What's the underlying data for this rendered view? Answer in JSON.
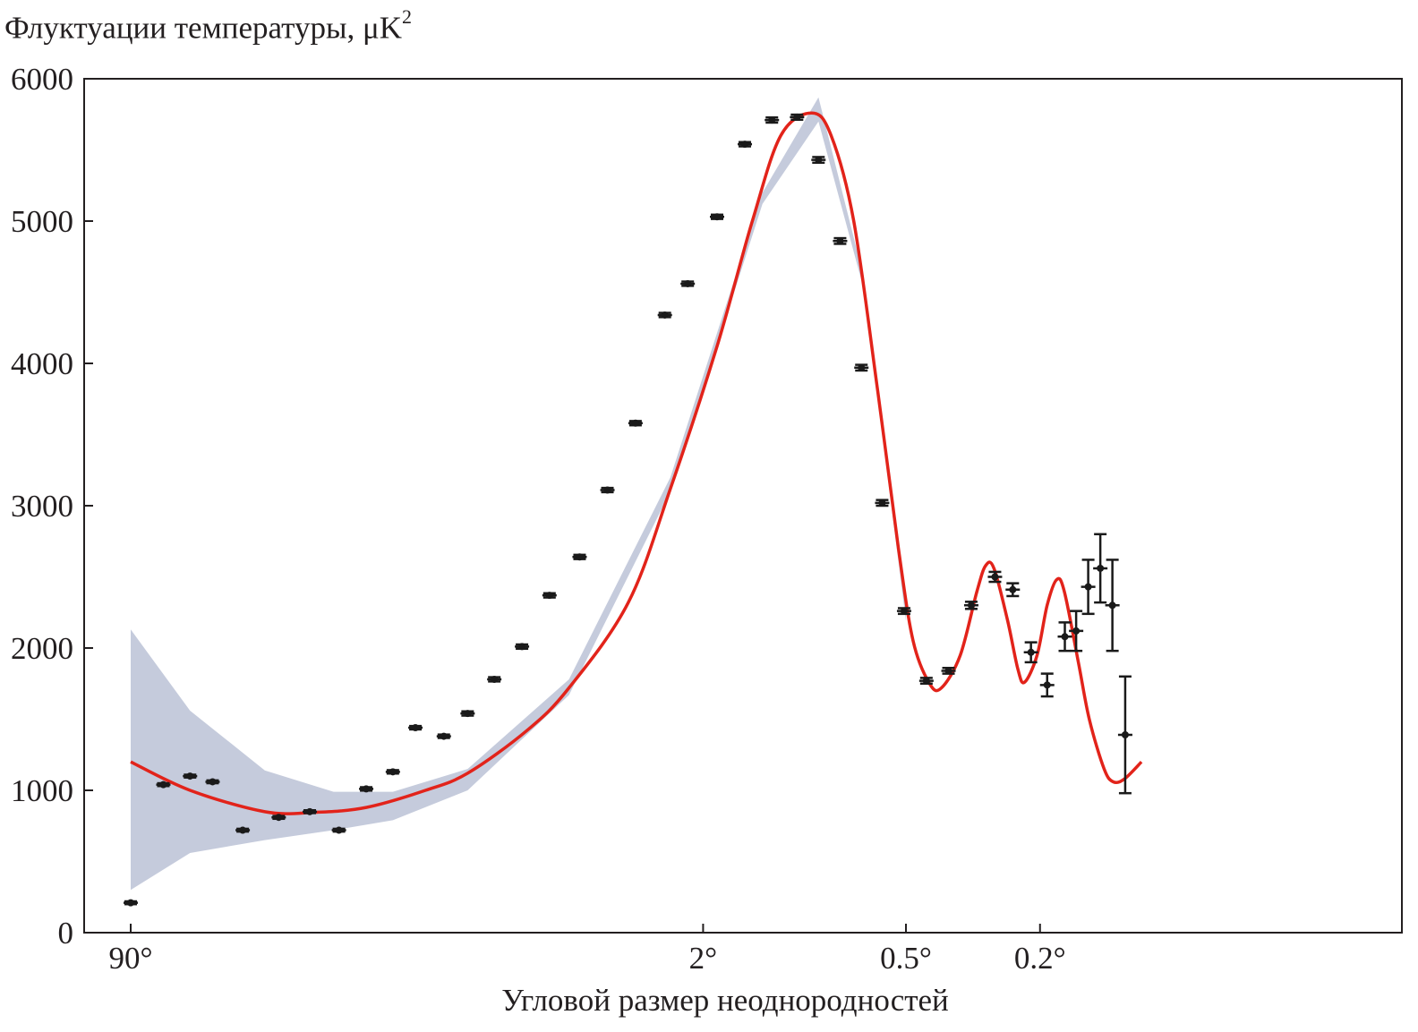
{
  "chart_data": {
    "type": "scatter",
    "title": "",
    "ylabel": {
      "text": "Флуктуации температуры, μK",
      "sup": "2"
    },
    "xlabel": "Угловой размер неоднородностей",
    "ylim": [
      0,
      6000
    ],
    "xlim_multipole": [
      2,
      2500
    ],
    "x_scale": "log (angular scale)",
    "y_ticks": [
      "0",
      "1000",
      "2000",
      "3000",
      "4000",
      "5000",
      "6000"
    ],
    "x_ticks": [
      {
        "label": "90°",
        "l": 2
      },
      {
        "label": "2°",
        "l": 100
      },
      {
        "label": "0.5°",
        "l": 400
      },
      {
        "label": "0.2°",
        "l": 1000
      }
    ],
    "colors": {
      "model_line": "#e2231a",
      "uncertainty_band": "#c5cbdc",
      "points": "#1a1a1a",
      "axes": "#231f20"
    },
    "series": [
      {
        "type": "band",
        "points": [
          [
            2,
            300,
            2130
          ],
          [
            3,
            560,
            1560
          ],
          [
            5,
            650,
            1140
          ],
          [
            8,
            720,
            990
          ],
          [
            12,
            790,
            990
          ],
          [
            20,
            1000,
            1150
          ],
          [
            40,
            1670,
            1780
          ],
          [
            80,
            3100,
            3200
          ],
          [
            150,
            5120,
            5200
          ],
          [
            220,
            5700,
            5870
          ],
          [
            300,
            4520,
            4600
          ],
          [
            400,
            2190,
            2270
          ]
        ]
      },
      {
        "type": "line",
        "points": [
          [
            2,
            1200
          ],
          [
            3,
            1000
          ],
          [
            5,
            850
          ],
          [
            7,
            845
          ],
          [
            10,
            880
          ],
          [
            15,
            1000
          ],
          [
            20,
            1120
          ],
          [
            30,
            1420
          ],
          [
            40,
            1720
          ],
          [
            60,
            2320
          ],
          [
            80,
            3120
          ],
          [
            110,
            4120
          ],
          [
            140,
            5000
          ],
          [
            170,
            5600
          ],
          [
            210,
            5760
          ],
          [
            240,
            5600
          ],
          [
            280,
            5000
          ],
          [
            330,
            3800
          ],
          [
            380,
            2700
          ],
          [
            420,
            2050
          ],
          [
            470,
            1750
          ],
          [
            510,
            1720
          ],
          [
            580,
            1950
          ],
          [
            650,
            2400
          ],
          [
            690,
            2580
          ],
          [
            730,
            2560
          ],
          [
            800,
            2200
          ],
          [
            860,
            1850
          ],
          [
            900,
            1760
          ],
          [
            980,
            1950
          ],
          [
            1050,
            2300
          ],
          [
            1120,
            2480
          ],
          [
            1180,
            2400
          ],
          [
            1300,
            1900
          ],
          [
            1400,
            1500
          ],
          [
            1550,
            1150
          ],
          [
            1650,
            1060
          ],
          [
            1780,
            1080
          ],
          [
            2000,
            1200
          ]
        ]
      },
      {
        "type": "errorbar",
        "points": [
          [
            2,
            210,
            10
          ],
          [
            2.5,
            1040,
            10
          ],
          [
            3,
            1100,
            10
          ],
          [
            3.5,
            1060,
            10
          ],
          [
            4.3,
            720,
            10
          ],
          [
            5.5,
            810,
            10
          ],
          [
            6.8,
            850,
            10
          ],
          [
            8.3,
            720,
            10
          ],
          [
            10,
            1010,
            12
          ],
          [
            12,
            1130,
            12
          ],
          [
            14,
            1440,
            12
          ],
          [
            17,
            1380,
            12
          ],
          [
            20,
            1540,
            15
          ],
          [
            24,
            1780,
            15
          ],
          [
            29,
            2010,
            15
          ],
          [
            35,
            2370,
            15
          ],
          [
            43,
            2640,
            15
          ],
          [
            52,
            3110,
            15
          ],
          [
            63,
            3580,
            15
          ],
          [
            77,
            4340,
            15
          ],
          [
            90,
            4560,
            15
          ],
          [
            110,
            5030,
            15
          ],
          [
            133,
            5540,
            15
          ],
          [
            160,
            5710,
            18
          ],
          [
            190,
            5730,
            18
          ],
          [
            220,
            5430,
            20
          ],
          [
            255,
            4860,
            20
          ],
          [
            295,
            3970,
            20
          ],
          [
            340,
            3020,
            20
          ],
          [
            395,
            2260,
            20
          ],
          [
            460,
            1770,
            20
          ],
          [
            535,
            1840,
            20
          ],
          [
            625,
            2300,
            25
          ],
          [
            735,
            2500,
            35
          ],
          [
            830,
            2410,
            45
          ],
          [
            940,
            1970,
            70
          ],
          [
            1050,
            1740,
            80
          ],
          [
            1185,
            2080,
            100
          ],
          [
            1280,
            2120,
            140
          ],
          [
            1390,
            2430,
            190
          ],
          [
            1510,
            2560,
            240
          ],
          [
            1640,
            2300,
            320
          ],
          [
            1790,
            1390,
            410
          ]
        ]
      }
    ]
  }
}
